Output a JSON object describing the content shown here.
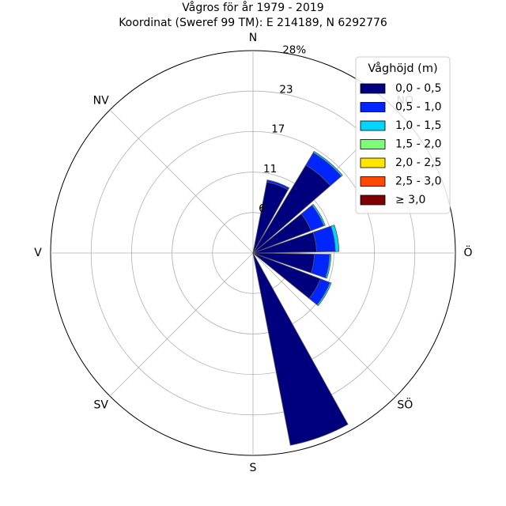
{
  "chart_data": {
    "type": "windrose",
    "title": "Vågros för år 1979 - 2019",
    "subtitle": "Koordinat (Sweref 99 TM): E 214189, N 6292776",
    "directions": [
      "N",
      "NÖ",
      "Ö",
      "SÖ",
      "S",
      "SV",
      "V",
      "NV"
    ],
    "radial_ticks": [
      "6",
      "11",
      "17",
      "23",
      "28%"
    ],
    "radial_tick_values": [
      5.6,
      11.2,
      16.8,
      22.4,
      28
    ],
    "rmax": 28,
    "unit": "%",
    "legend_title": "Våghöjd (m)",
    "legend_position": "top-right",
    "grid": true,
    "series": [
      {
        "name": "0,0 - 0,5",
        "color": "#00007f"
      },
      {
        "name": "0,5 - 1,0",
        "color": "#0025ff"
      },
      {
        "name": "1,0 - 1,5",
        "color": "#00d5ff"
      },
      {
        "name": "1,5 - 2,0",
        "color": "#7cff79"
      },
      {
        "name": "2,0 - 2,5",
        "color": "#ffe600"
      },
      {
        "name": "2,5 - 3,0",
        "color": "#ff4800"
      },
      {
        "name": "≥ 3,0",
        "color": "#7f0000"
      }
    ],
    "sectors": [
      {
        "bearing": 20,
        "values": [
          10.0,
          0.3
        ]
      },
      {
        "bearing": 40,
        "values": [
          14.2,
          2.0,
          0.2
        ]
      },
      {
        "bearing": 60,
        "values": [
          8.6,
          1.9,
          0.2
        ]
      },
      {
        "bearing": 80,
        "values": [
          8.8,
          2.6,
          0.5
        ]
      },
      {
        "bearing": 100,
        "values": [
          8.5,
          2.1,
          0.2
        ]
      },
      {
        "bearing": 120,
        "values": [
          10.0,
          1.4,
          0.2
        ]
      },
      {
        "bearing": 140,
        "values": [
          0.2
        ]
      },
      {
        "bearing": 160,
        "values": [
          27.1
        ]
      }
    ],
    "sector_width_deg": 18
  }
}
